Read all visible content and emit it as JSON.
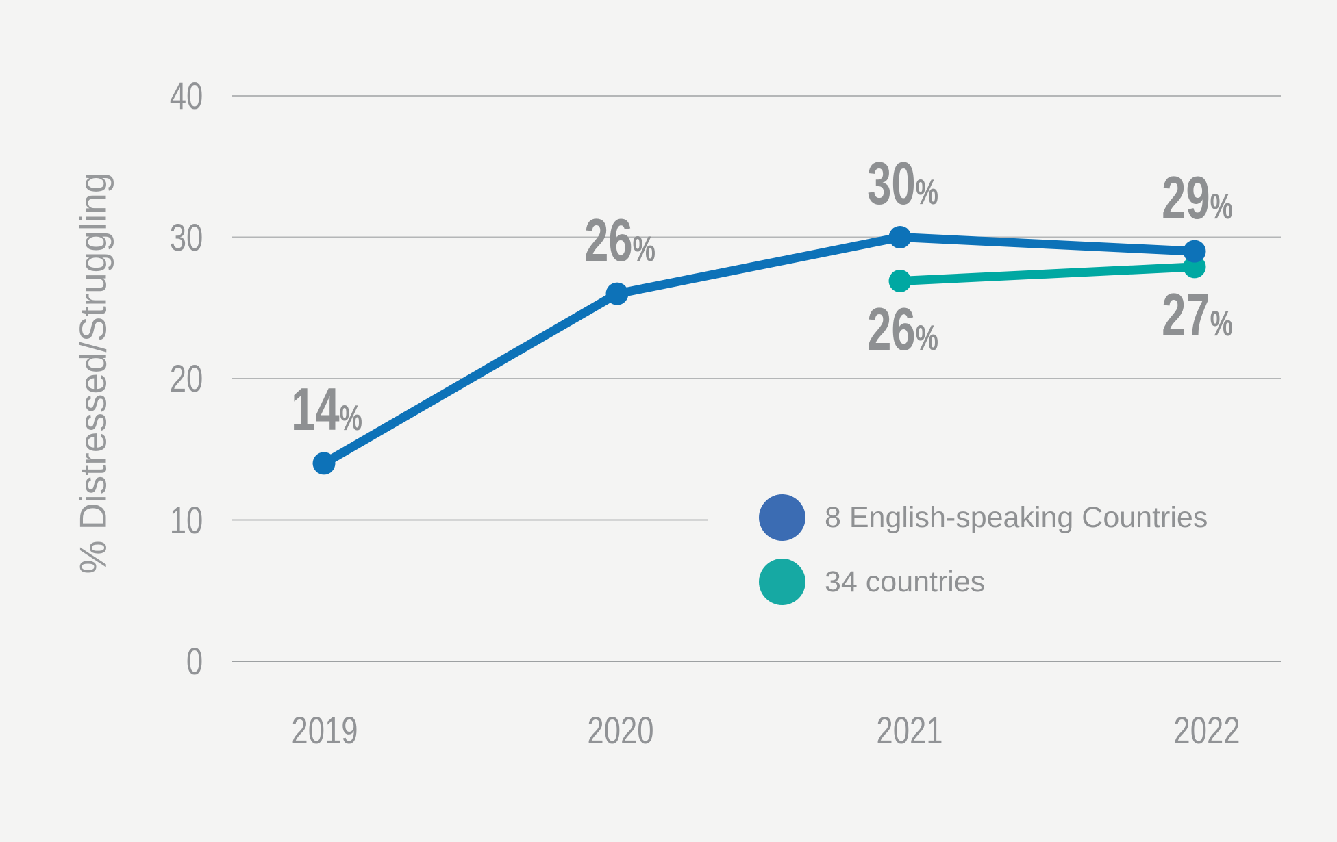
{
  "canvas": {
    "background": "#f4f4f3"
  },
  "chart_data": {
    "type": "line",
    "x": [
      "2019",
      "2020",
      "2021",
      "2022"
    ],
    "series": [
      {
        "name": "8 English-speaking Countries",
        "values": [
          14,
          26,
          30,
          29
        ],
        "value_labels": [
          "14",
          "26",
          "30",
          "29"
        ],
        "label_position": "above",
        "color": "#0d72b8",
        "legend_color": "#3b6cb3"
      },
      {
        "name": "34 countries",
        "values": [
          null,
          null,
          26,
          27
        ],
        "value_labels": [
          null,
          null,
          "26",
          "27"
        ],
        "label_position": "below",
        "color": "#00a8a2",
        "legend_color": "#16a9a3"
      }
    ],
    "percent_suffix": "%",
    "title": "",
    "xlabel": "",
    "ylabel": "% Distressed/Struggling",
    "ylim": [
      0,
      40
    ],
    "yticks": [
      40,
      30,
      20,
      10,
      0
    ],
    "grid": true,
    "legend_position": "inside-bottom-right"
  },
  "colors": {
    "background": "#f4f4f3",
    "grid": "#b4b6b7",
    "axis_line": "#9da0a2",
    "tick_text": "#919396",
    "axis_title_text": "#97999b",
    "data_label_text": "#8e9092",
    "legend_text": "#8f9193"
  }
}
